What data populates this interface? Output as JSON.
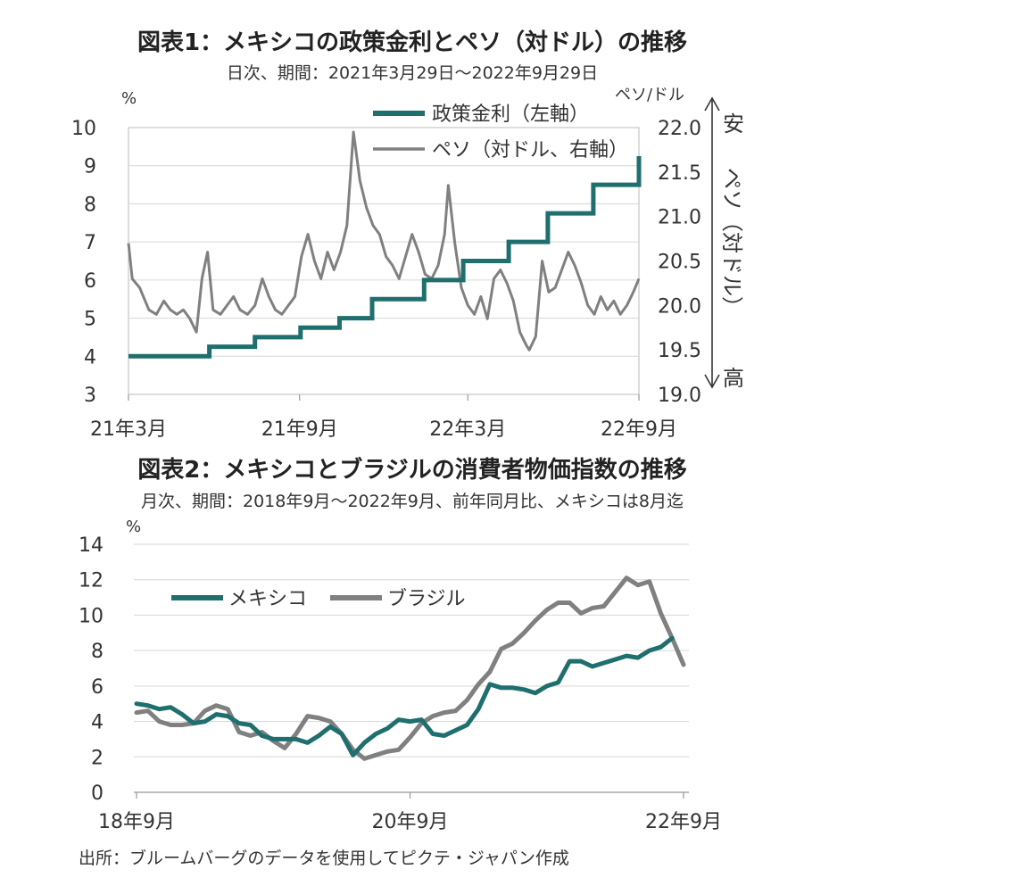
{
  "charts": [
    {
      "title": "図表1：メキシコの政策金利とペソ（対ドル）の推移",
      "subtitle": "日次、期間：2021年3月29日～2022年9月29日",
      "left_unit": "%",
      "right_unit": "ペソ/ドル",
      "side_labels": {
        "top": "安",
        "middle": "ペソ（対ドル）",
        "bottom": "高"
      }
    },
    {
      "title": "図表2：メキシコとブラジルの消費者物価指数の推移",
      "subtitle": "月次、期間：2018年9月～2022年9月、前年同月比、メキシコは8月迄",
      "left_unit": "%"
    }
  ],
  "source": "出所：ブルームバーグのデータを使用してピクテ・ジャパン作成",
  "chart_data": [
    {
      "type": "line",
      "title": "図表1：メキシコの政策金利とペソ（対ドル）の推移",
      "x_ticks": [
        "21年3月",
        "21年9月",
        "22年3月",
        "22年9月"
      ],
      "y_left": {
        "label": "%",
        "range": [
          3,
          10
        ],
        "ticks": [
          3,
          4,
          5,
          6,
          7,
          8,
          9,
          10
        ]
      },
      "y_right": {
        "label": "ペソ/ドル",
        "range": [
          19.0,
          22.0
        ],
        "ticks": [
          "19.0",
          "19.5",
          "20.0",
          "20.5",
          "21.0",
          "21.5",
          "22.0"
        ]
      },
      "grid": true,
      "legend": "top-right",
      "colors": {
        "policy_rate": "#1f6f6f",
        "peso": "#808080"
      },
      "series": [
        {
          "name": "政策金利（左軸）",
          "axis": "left",
          "step": true,
          "points": [
            [
              "2021-03-29",
              4.0
            ],
            [
              "2021-06-24",
              4.25
            ],
            [
              "2021-08-12",
              4.5
            ],
            [
              "2021-09-30",
              4.75
            ],
            [
              "2021-11-11",
              5.0
            ],
            [
              "2021-12-16",
              5.5
            ],
            [
              "2022-02-10",
              6.0
            ],
            [
              "2022-03-24",
              6.5
            ],
            [
              "2022-05-12",
              7.0
            ],
            [
              "2022-06-23",
              7.75
            ],
            [
              "2022-08-11",
              8.5
            ],
            [
              "2022-09-29",
              9.25
            ]
          ]
        },
        {
          "name": "ペソ（対ドル、右軸）",
          "axis": "right",
          "points": [
            [
              "2021-03-29",
              20.7
            ],
            [
              "2021-04-02",
              20.3
            ],
            [
              "2021-04-10",
              20.2
            ],
            [
              "2021-04-20",
              19.95
            ],
            [
              "2021-04-28",
              19.9
            ],
            [
              "2021-05-06",
              20.05
            ],
            [
              "2021-05-13",
              19.95
            ],
            [
              "2021-05-20",
              19.9
            ],
            [
              "2021-05-27",
              19.95
            ],
            [
              "2021-06-03",
              19.85
            ],
            [
              "2021-06-10",
              19.7
            ],
            [
              "2021-06-16",
              20.3
            ],
            [
              "2021-06-22",
              20.6
            ],
            [
              "2021-06-28",
              19.95
            ],
            [
              "2021-07-06",
              19.9
            ],
            [
              "2021-07-13",
              20.0
            ],
            [
              "2021-07-20",
              20.1
            ],
            [
              "2021-07-27",
              19.95
            ],
            [
              "2021-08-04",
              19.9
            ],
            [
              "2021-08-12",
              20.0
            ],
            [
              "2021-08-20",
              20.3
            ],
            [
              "2021-08-27",
              20.1
            ],
            [
              "2021-09-03",
              19.95
            ],
            [
              "2021-09-10",
              19.9
            ],
            [
              "2021-09-17",
              20.0
            ],
            [
              "2021-09-24",
              20.1
            ],
            [
              "2021-10-01",
              20.55
            ],
            [
              "2021-10-08",
              20.8
            ],
            [
              "2021-10-15",
              20.5
            ],
            [
              "2021-10-22",
              20.3
            ],
            [
              "2021-10-29",
              20.6
            ],
            [
              "2021-11-05",
              20.4
            ],
            [
              "2021-11-12",
              20.6
            ],
            [
              "2021-11-19",
              20.9
            ],
            [
              "2021-11-26",
              21.95
            ],
            [
              "2021-12-03",
              21.4
            ],
            [
              "2021-12-10",
              21.1
            ],
            [
              "2021-12-17",
              20.9
            ],
            [
              "2021-12-24",
              20.8
            ],
            [
              "2021-12-31",
              20.55
            ],
            [
              "2022-01-07",
              20.45
            ],
            [
              "2022-01-14",
              20.3
            ],
            [
              "2022-01-21",
              20.55
            ],
            [
              "2022-01-28",
              20.8
            ],
            [
              "2022-02-04",
              20.6
            ],
            [
              "2022-02-11",
              20.35
            ],
            [
              "2022-02-18",
              20.3
            ],
            [
              "2022-02-25",
              20.45
            ],
            [
              "2022-03-04",
              20.8
            ],
            [
              "2022-03-08",
              21.35
            ],
            [
              "2022-03-15",
              20.7
            ],
            [
              "2022-03-22",
              20.2
            ],
            [
              "2022-03-29",
              20.0
            ],
            [
              "2022-04-05",
              19.9
            ],
            [
              "2022-04-12",
              20.1
            ],
            [
              "2022-04-19",
              19.85
            ],
            [
              "2022-04-26",
              20.3
            ],
            [
              "2022-05-03",
              20.4
            ],
            [
              "2022-05-10",
              20.25
            ],
            [
              "2022-05-17",
              20.05
            ],
            [
              "2022-05-24",
              19.7
            ],
            [
              "2022-05-31",
              19.55
            ],
            [
              "2022-06-03",
              19.5
            ],
            [
              "2022-06-10",
              19.65
            ],
            [
              "2022-06-17",
              20.5
            ],
            [
              "2022-06-24",
              20.15
            ],
            [
              "2022-07-01",
              20.2
            ],
            [
              "2022-07-08",
              20.4
            ],
            [
              "2022-07-15",
              20.6
            ],
            [
              "2022-07-22",
              20.45
            ],
            [
              "2022-07-29",
              20.25
            ],
            [
              "2022-08-05",
              20.0
            ],
            [
              "2022-08-12",
              19.9
            ],
            [
              "2022-08-19",
              20.1
            ],
            [
              "2022-08-26",
              19.95
            ],
            [
              "2022-09-02",
              20.05
            ],
            [
              "2022-09-09",
              19.9
            ],
            [
              "2022-09-16",
              20.0
            ],
            [
              "2022-09-23",
              20.15
            ],
            [
              "2022-09-29",
              20.3
            ]
          ]
        }
      ]
    },
    {
      "type": "line",
      "title": "図表2：メキシコとブラジルの消費者物価指数の推移",
      "x_ticks": [
        "18年9月",
        "20年9月",
        "22年9月"
      ],
      "y": {
        "label": "%",
        "range": [
          0,
          14
        ],
        "ticks": [
          0,
          2,
          4,
          6,
          8,
          10,
          12,
          14
        ]
      },
      "grid": true,
      "legend": "top-left",
      "colors": {
        "mexico": "#1f6f6f",
        "brazil": "#808080"
      },
      "x_months": [
        "2018-09",
        "2018-10",
        "2018-11",
        "2018-12",
        "2019-01",
        "2019-02",
        "2019-03",
        "2019-04",
        "2019-05",
        "2019-06",
        "2019-07",
        "2019-08",
        "2019-09",
        "2019-10",
        "2019-11",
        "2019-12",
        "2020-01",
        "2020-02",
        "2020-03",
        "2020-04",
        "2020-05",
        "2020-06",
        "2020-07",
        "2020-08",
        "2020-09",
        "2020-10",
        "2020-11",
        "2020-12",
        "2021-01",
        "2021-02",
        "2021-03",
        "2021-04",
        "2021-05",
        "2021-06",
        "2021-07",
        "2021-08",
        "2021-09",
        "2021-10",
        "2021-11",
        "2021-12",
        "2022-01",
        "2022-02",
        "2022-03",
        "2022-04",
        "2022-05",
        "2022-06",
        "2022-07",
        "2022-08",
        "2022-09"
      ],
      "series": [
        {
          "name": "メキシコ",
          "values": [
            5.0,
            4.9,
            4.7,
            4.8,
            4.4,
            3.9,
            4.0,
            4.4,
            4.3,
            3.9,
            3.8,
            3.2,
            3.0,
            3.0,
            3.0,
            2.8,
            3.2,
            3.7,
            3.3,
            2.1,
            2.8,
            3.3,
            3.6,
            4.1,
            4.0,
            4.1,
            3.3,
            3.2,
            3.5,
            3.8,
            4.7,
            6.1,
            5.9,
            5.9,
            5.8,
            5.6,
            6.0,
            6.2,
            7.4,
            7.4,
            7.1,
            7.3,
            7.5,
            7.7,
            7.6,
            8.0,
            8.2,
            8.7,
            null
          ]
        },
        {
          "name": "ブラジル",
          "values": [
            4.5,
            4.6,
            4.0,
            3.8,
            3.8,
            3.9,
            4.6,
            4.9,
            4.7,
            3.4,
            3.2,
            3.4,
            2.9,
            2.5,
            3.3,
            4.3,
            4.2,
            4.0,
            3.3,
            2.4,
            1.9,
            2.1,
            2.3,
            2.4,
            3.1,
            3.9,
            4.3,
            4.5,
            4.6,
            5.2,
            6.1,
            6.8,
            8.1,
            8.4,
            9.0,
            9.7,
            10.3,
            10.7,
            10.7,
            10.1,
            10.4,
            10.5,
            11.3,
            12.1,
            11.7,
            11.9,
            10.1,
            8.7,
            7.2
          ]
        }
      ]
    }
  ]
}
